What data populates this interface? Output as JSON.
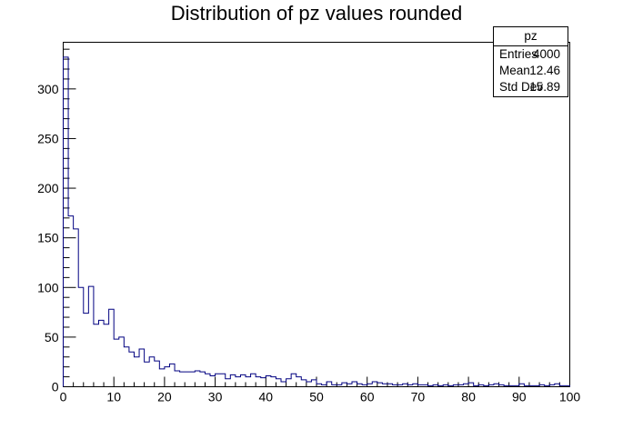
{
  "chart_data": {
    "type": "histogram",
    "title": "Distribution of pz values rounded",
    "xlabel": "",
    "ylabel": "",
    "xlim": [
      0,
      100
    ],
    "ylim": [
      0,
      347
    ],
    "bin_width": 1,
    "x_ticks": [
      0,
      10,
      20,
      30,
      40,
      50,
      60,
      70,
      80,
      90,
      100
    ],
    "y_ticks": [
      0,
      50,
      100,
      150,
      200,
      250,
      300
    ],
    "line_color": "#000080",
    "grid": false,
    "values": [
      332,
      172,
      159,
      100,
      74,
      101,
      63,
      67,
      63,
      78,
      48,
      50,
      40,
      35,
      30,
      38,
      25,
      30,
      26,
      18,
      20,
      23,
      16,
      15,
      15,
      15,
      16,
      15,
      13,
      11,
      13,
      13,
      8,
      12,
      10,
      12,
      10,
      13,
      10,
      9,
      11,
      10,
      8,
      5,
      8,
      13,
      10,
      7,
      5,
      7,
      3,
      2,
      5,
      2,
      2,
      4,
      3,
      5,
      3,
      2,
      3,
      5,
      4,
      3,
      3,
      2,
      2,
      3,
      2,
      3,
      2,
      2,
      1,
      2,
      1,
      2,
      1,
      2,
      2,
      3,
      4,
      1,
      2,
      1,
      2,
      3,
      2,
      1,
      1,
      1,
      3,
      1,
      1,
      1,
      2,
      1,
      2,
      3,
      1,
      1
    ]
  },
  "stats_box": {
    "name": "pz",
    "rows": [
      {
        "label": "Entries",
        "value": "4000"
      },
      {
        "label": "Mean",
        "value": "12.46"
      },
      {
        "label": "Std Dev",
        "value": "15.89"
      }
    ]
  }
}
